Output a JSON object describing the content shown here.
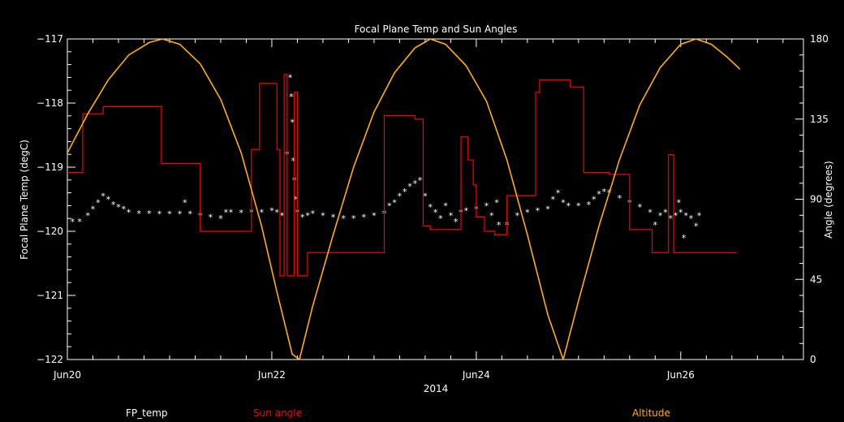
{
  "chart_data": {
    "type": "line",
    "title": "Focal Plane Temp and Sun Angles",
    "xlabel": "2014",
    "ylabel": "Focal Plane Temp (degC)",
    "y2label": "Angle (degrees)",
    "xlim": [
      20.0,
      27.2
    ],
    "ylim": [
      -122,
      -117
    ],
    "y2lim": [
      0,
      180
    ],
    "x_ticks": [
      {
        "x": 20,
        "label": "Jun20"
      },
      {
        "x": 22,
        "label": "Jun22"
      },
      {
        "x": 24,
        "label": "Jun24"
      },
      {
        "x": 26,
        "label": "Jun26"
      }
    ],
    "y_ticks": [
      {
        "y": -117,
        "label": "−117"
      },
      {
        "y": -118,
        "label": "−118"
      },
      {
        "y": -119,
        "label": "−119"
      },
      {
        "y": -120,
        "label": "−120"
      },
      {
        "y": -121,
        "label": "−121"
      },
      {
        "y": -122,
        "label": "−122"
      }
    ],
    "y2_ticks": [
      {
        "y": 0,
        "label": "0"
      },
      {
        "y": 45,
        "label": "45"
      },
      {
        "y": 90,
        "label": "90"
      },
      {
        "y": 135,
        "label": "135"
      },
      {
        "y": 180,
        "label": "180"
      }
    ],
    "grid": false,
    "legend": [
      "FP_temp",
      "Sun angle",
      "Altitude"
    ],
    "colors": {
      "fp_temp": "#ffffff",
      "sun_angle": "#ff0000",
      "altitude": "#ffb000",
      "axes": "#ffffff"
    },
    "series": [
      {
        "name": "FP_temp",
        "axis": "left",
        "style": "asterisk",
        "points": [
          [
            20.05,
            -119.85
          ],
          [
            20.12,
            -119.85
          ],
          [
            20.2,
            -119.75
          ],
          [
            20.25,
            -119.65
          ],
          [
            20.3,
            -119.55
          ],
          [
            20.35,
            -119.45
          ],
          [
            20.4,
            -119.5
          ],
          [
            20.45,
            -119.58
          ],
          [
            20.5,
            -119.62
          ],
          [
            20.55,
            -119.65
          ],
          [
            20.6,
            -119.7
          ],
          [
            20.7,
            -119.72
          ],
          [
            20.8,
            -119.72
          ],
          [
            20.9,
            -119.73
          ],
          [
            21.0,
            -119.73
          ],
          [
            21.1,
            -119.73
          ],
          [
            21.15,
            -119.55
          ],
          [
            21.2,
            -119.73
          ],
          [
            21.3,
            -119.75
          ],
          [
            21.4,
            -119.78
          ],
          [
            21.5,
            -119.8
          ],
          [
            21.55,
            -119.7
          ],
          [
            21.6,
            -119.7
          ],
          [
            21.7,
            -119.71
          ],
          [
            21.8,
            -119.7
          ],
          [
            21.9,
            -119.7
          ],
          [
            22.0,
            -119.68
          ],
          [
            22.05,
            -119.7
          ],
          [
            22.1,
            -119.75
          ],
          [
            22.15,
            -118.8
          ],
          [
            22.18,
            -117.6
          ],
          [
            22.19,
            -117.9
          ],
          [
            22.2,
            -118.3
          ],
          [
            22.21,
            -118.9
          ],
          [
            22.22,
            -119.2
          ],
          [
            22.23,
            -119.5
          ],
          [
            22.25,
            -119.7
          ],
          [
            22.3,
            -119.78
          ],
          [
            22.35,
            -119.75
          ],
          [
            22.4,
            -119.72
          ],
          [
            22.5,
            -119.75
          ],
          [
            22.6,
            -119.78
          ],
          [
            22.7,
            -119.8
          ],
          [
            22.8,
            -119.8
          ],
          [
            22.9,
            -119.78
          ],
          [
            23.0,
            -119.75
          ],
          [
            23.1,
            -119.72
          ],
          [
            23.15,
            -119.6
          ],
          [
            23.2,
            -119.55
          ],
          [
            23.25,
            -119.45
          ],
          [
            23.3,
            -119.38
          ],
          [
            23.35,
            -119.3
          ],
          [
            23.4,
            -119.25
          ],
          [
            23.45,
            -119.2
          ],
          [
            23.5,
            -119.45
          ],
          [
            23.55,
            -119.62
          ],
          [
            23.6,
            -119.7
          ],
          [
            23.65,
            -119.8
          ],
          [
            23.7,
            -119.6
          ],
          [
            23.75,
            -119.75
          ],
          [
            23.8,
            -119.85
          ],
          [
            23.85,
            -119.7
          ],
          [
            23.9,
            -119.68
          ],
          [
            24.0,
            -119.65
          ],
          [
            24.1,
            -119.6
          ],
          [
            24.15,
            -119.75
          ],
          [
            24.2,
            -119.55
          ],
          [
            24.22,
            -119.9
          ],
          [
            24.3,
            -119.9
          ],
          [
            24.4,
            -119.75
          ],
          [
            24.5,
            -119.7
          ],
          [
            24.6,
            -119.68
          ],
          [
            24.7,
            -119.65
          ],
          [
            24.75,
            -119.5
          ],
          [
            24.8,
            -119.4
          ],
          [
            24.85,
            -119.55
          ],
          [
            24.9,
            -119.6
          ],
          [
            25.0,
            -119.6
          ],
          [
            25.1,
            -119.58
          ],
          [
            25.15,
            -119.5
          ],
          [
            25.2,
            -119.42
          ],
          [
            25.25,
            -119.38
          ],
          [
            25.3,
            -119.4
          ],
          [
            25.4,
            -119.48
          ],
          [
            25.5,
            -119.55
          ],
          [
            25.6,
            -119.62
          ],
          [
            25.7,
            -119.7
          ],
          [
            25.75,
            -119.9
          ],
          [
            25.8,
            -119.75
          ],
          [
            25.85,
            -119.7
          ],
          [
            25.9,
            -119.8
          ],
          [
            25.95,
            -119.75
          ],
          [
            25.98,
            -119.55
          ],
          [
            26.0,
            -119.7
          ],
          [
            26.03,
            -120.1
          ],
          [
            26.05,
            -119.75
          ],
          [
            26.1,
            -119.8
          ],
          [
            26.15,
            -119.92
          ],
          [
            26.18,
            -119.75
          ]
        ]
      },
      {
        "name": "Sun angle",
        "axis": "right",
        "style": "step",
        "points": [
          [
            20.0,
            105
          ],
          [
            20.15,
            105
          ],
          [
            20.15,
            138
          ],
          [
            20.35,
            138
          ],
          [
            20.35,
            142
          ],
          [
            20.92,
            142
          ],
          [
            20.92,
            110
          ],
          [
            21.3,
            110
          ],
          [
            21.3,
            72
          ],
          [
            21.8,
            72
          ],
          [
            21.8,
            118
          ],
          [
            21.88,
            118
          ],
          [
            21.88,
            155
          ],
          [
            22.05,
            155
          ],
          [
            22.05,
            118
          ],
          [
            22.08,
            118
          ],
          [
            22.08,
            47
          ],
          [
            22.12,
            47
          ],
          [
            22.12,
            160
          ],
          [
            22.15,
            160
          ],
          [
            22.15,
            47
          ],
          [
            22.22,
            47
          ],
          [
            22.22,
            150
          ],
          [
            22.25,
            150
          ],
          [
            22.25,
            47
          ],
          [
            22.35,
            47
          ],
          [
            22.35,
            60
          ],
          [
            22.7,
            60
          ],
          [
            22.7,
            60
          ],
          [
            23.1,
            60
          ],
          [
            23.1,
            137
          ],
          [
            23.4,
            137
          ],
          [
            23.4,
            135
          ],
          [
            23.48,
            135
          ],
          [
            23.48,
            75
          ],
          [
            23.55,
            75
          ],
          [
            23.55,
            73
          ],
          [
            23.85,
            73
          ],
          [
            23.85,
            125
          ],
          [
            23.92,
            125
          ],
          [
            23.92,
            112
          ],
          [
            23.97,
            112
          ],
          [
            23.97,
            98
          ],
          [
            24.0,
            98
          ],
          [
            24.0,
            80
          ],
          [
            24.08,
            80
          ],
          [
            24.08,
            72
          ],
          [
            24.18,
            72
          ],
          [
            24.18,
            70
          ],
          [
            24.3,
            70
          ],
          [
            24.3,
            92
          ],
          [
            24.58,
            92
          ],
          [
            24.58,
            150
          ],
          [
            24.62,
            150
          ],
          [
            24.62,
            157
          ],
          [
            24.92,
            157
          ],
          [
            24.92,
            153
          ],
          [
            25.05,
            153
          ],
          [
            25.05,
            105
          ],
          [
            25.3,
            105
          ],
          [
            25.3,
            104
          ],
          [
            25.5,
            104
          ],
          [
            25.5,
            73
          ],
          [
            25.72,
            73
          ],
          [
            25.72,
            60
          ],
          [
            25.88,
            60
          ],
          [
            25.88,
            115
          ],
          [
            25.93,
            115
          ],
          [
            25.93,
            60
          ],
          [
            26.1,
            60
          ],
          [
            26.1,
            60
          ],
          [
            26.55,
            60
          ]
        ]
      },
      {
        "name": "Altitude",
        "axis": "right",
        "style": "line",
        "points": [
          [
            20.0,
            116
          ],
          [
            20.2,
            138
          ],
          [
            20.4,
            157
          ],
          [
            20.6,
            171
          ],
          [
            20.8,
            178
          ],
          [
            20.93,
            180
          ],
          [
            21.1,
            177
          ],
          [
            21.3,
            166
          ],
          [
            21.5,
            146
          ],
          [
            21.7,
            116
          ],
          [
            21.9,
            75
          ],
          [
            22.05,
            38
          ],
          [
            22.2,
            3
          ],
          [
            22.27,
            0
          ],
          [
            22.4,
            30
          ],
          [
            22.6,
            70
          ],
          [
            22.8,
            108
          ],
          [
            23.0,
            139
          ],
          [
            23.2,
            161
          ],
          [
            23.4,
            175
          ],
          [
            23.55,
            180
          ],
          [
            23.7,
            177
          ],
          [
            23.9,
            165
          ],
          [
            24.1,
            145
          ],
          [
            24.3,
            112
          ],
          [
            24.5,
            70
          ],
          [
            24.7,
            25
          ],
          [
            24.85,
            0
          ],
          [
            25.0,
            33
          ],
          [
            25.2,
            75
          ],
          [
            25.4,
            112
          ],
          [
            25.6,
            143
          ],
          [
            25.8,
            164
          ],
          [
            26.0,
            177
          ],
          [
            26.15,
            180
          ],
          [
            26.3,
            177
          ],
          [
            26.45,
            170
          ],
          [
            26.58,
            163
          ]
        ]
      }
    ]
  }
}
